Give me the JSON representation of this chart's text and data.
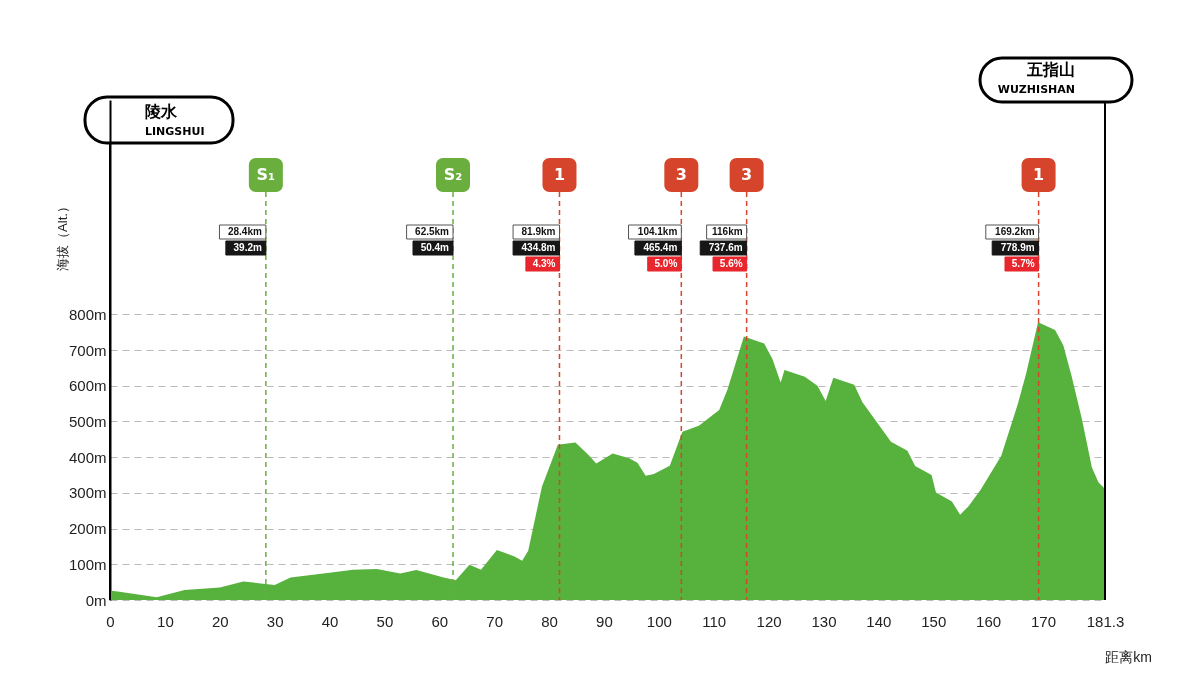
{
  "chart_data": {
    "type": "area",
    "xlabel": "距离km",
    "ylabel": "海拔（Alt.）",
    "color": "#56b13d",
    "x": [
      0,
      1.4,
      8.5,
      13.6,
      20.0,
      24.3,
      30.0,
      32.9,
      40.0,
      44.3,
      48.6,
      52.9,
      55.8,
      60.8,
      63.0,
      65.5,
      67.6,
      70.5,
      73.7,
      75.1,
      76.2,
      78.7,
      81.6,
      84.8,
      87.2,
      88.6,
      91.6,
      94.6,
      96.1,
      97.6,
      99.1,
      102.0,
      104.3,
      107.3,
      111.0,
      112.5,
      115.5,
      119.2,
      120.7,
      122.2,
      122.9,
      126.6,
      128.9,
      130.4,
      131.8,
      135.6,
      137.1,
      140.0,
      142.3,
      145.3,
      146.7,
      149.7,
      150.5,
      153.4,
      154.9,
      156.4,
      158.7,
      162.4,
      165.4,
      166.9,
      169.1,
      172.2,
      173.7,
      175.2,
      177.1,
      178.9,
      180.1,
      181.3
    ],
    "values": [
      26,
      24,
      8,
      28,
      35,
      52,
      42,
      63,
      76,
      85,
      87,
      74,
      84,
      63,
      55,
      99,
      85,
      140,
      122,
      110,
      138,
      317,
      435,
      441,
      406,
      382,
      410,
      397,
      384,
      348,
      353,
      376,
      471,
      488,
      532,
      589,
      738,
      718,
      675,
      609,
      644,
      625,
      600,
      557,
      622,
      603,
      554,
      492,
      443,
      418,
      375,
      350,
      301,
      276,
      239,
      262,
      310,
      404,
      548,
      632,
      778,
      756,
      713,
      628,
      506,
      372,
      330,
      311
    ],
    "xlim": [
      0,
      181.3
    ],
    "xticks": [
      0,
      10,
      20,
      30,
      40,
      50,
      60,
      70,
      80,
      90,
      100,
      110,
      120,
      130,
      140,
      150,
      160,
      170,
      181.3
    ],
    "ylim": [
      0,
      1400
    ],
    "yticks": [
      {
        "value": 0,
        "label": "0m"
      },
      {
        "value": 100,
        "label": "100m"
      },
      {
        "value": 200,
        "label": "200m"
      },
      {
        "value": 300,
        "label": "300m"
      },
      {
        "value": 400,
        "label": "400m"
      },
      {
        "value": 500,
        "label": "500m"
      },
      {
        "value": 600,
        "label": "600m"
      },
      {
        "value": 700,
        "label": "700m"
      },
      {
        "value": 800,
        "label": "800m"
      }
    ],
    "grid": "y",
    "ref_lines": [
      {
        "axis": "x",
        "value": 0,
        "label": "陵水\nLINGSHUI",
        "color": "#000000",
        "line_style": "solid"
      },
      {
        "axis": "x",
        "value": 181.3,
        "label": "五指山\nWUZHISHAN",
        "color": "#000000",
        "line_style": "solid"
      },
      {
        "axis": "x",
        "value": 28.4,
        "color": "#6aae3e",
        "line_style": "dashed"
      },
      {
        "axis": "x",
        "value": 62.5,
        "color": "#6aae3e",
        "line_style": "dashed"
      },
      {
        "axis": "x",
        "value": 81.9,
        "color": "#d6452b",
        "line_style": "dashed"
      },
      {
        "axis": "x",
        "value": 104.1,
        "color": "#d6452b",
        "line_style": "dashed"
      },
      {
        "axis": "x",
        "value": 116,
        "color": "#d6452b",
        "line_style": "dashed"
      },
      {
        "axis": "x",
        "value": 169.2,
        "color": "#d6452b",
        "line_style": "dashed"
      }
    ],
    "annotations": [
      {
        "text": "S₁",
        "x": 28.4
      },
      {
        "text": "28.4km",
        "x": 28.4
      },
      {
        "text": "39.2m",
        "x": 28.4
      },
      {
        "text": "S₂",
        "x": 62.5
      },
      {
        "text": "62.5km",
        "x": 62.5
      },
      {
        "text": "50.4m",
        "x": 62.5
      },
      {
        "text": "1",
        "x": 81.9
      },
      {
        "text": "81.9km",
        "x": 81.9
      },
      {
        "text": "434.8m",
        "x": 81.9
      },
      {
        "text": "4.3%",
        "x": 81.9
      },
      {
        "text": "3",
        "x": 104.1
      },
      {
        "text": "104.1km",
        "x": 104.1
      },
      {
        "text": "465.4m",
        "x": 104.1
      },
      {
        "text": "5.0%",
        "x": 104.1
      },
      {
        "text": "3",
        "x": 116
      },
      {
        "text": "116km",
        "x": 116
      },
      {
        "text": "737.6m",
        "x": 116
      },
      {
        "text": "5.6%",
        "x": 116
      },
      {
        "text": "1",
        "x": 169.2
      },
      {
        "text": "169.2km",
        "x": 169.2
      },
      {
        "text": "778.9m",
        "x": 169.2
      },
      {
        "text": "5.7%",
        "x": 169.2
      }
    ]
  }
}
